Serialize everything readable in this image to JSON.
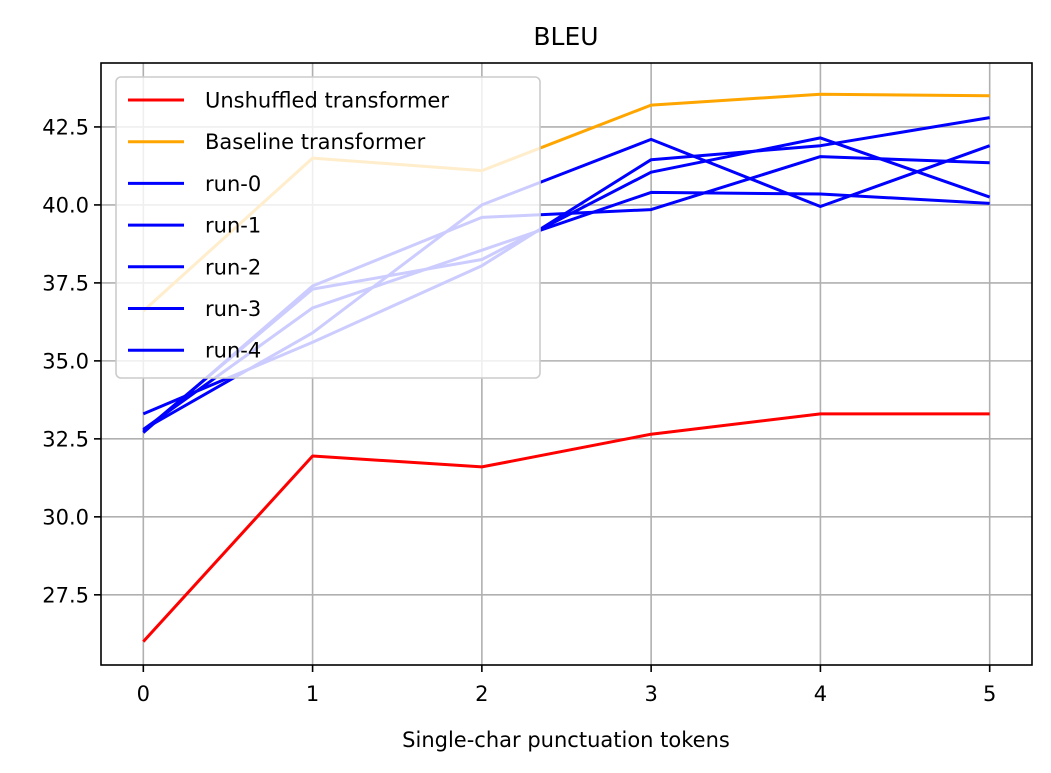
{
  "chart_data": {
    "type": "line",
    "title": "BLEU",
    "xlabel": "Single-char punctuation tokens",
    "ylabel": "",
    "x": [
      0,
      1,
      2,
      3,
      4,
      5
    ],
    "xlim": [
      -0.25,
      5.25
    ],
    "ylim": [
      25.25,
      44.55
    ],
    "xticks": [
      0,
      1,
      2,
      3,
      4,
      5
    ],
    "yticks": [
      27.5,
      30.0,
      32.5,
      35.0,
      37.5,
      40.0,
      42.5
    ],
    "ytick_labels": [
      "27.5",
      "30.0",
      "32.5",
      "35.0",
      "37.5",
      "40.0",
      "42.5"
    ],
    "xtick_labels": [
      "0",
      "1",
      "2",
      "3",
      "4",
      "5"
    ],
    "grid": true,
    "legend_position": "upper-left",
    "series": [
      {
        "name": "Unshuffled transformer",
        "color": "#ff0000",
        "values": [
          26.0,
          31.95,
          31.6,
          32.65,
          33.3,
          33.3
        ]
      },
      {
        "name": "Baseline transformer",
        "color": "#ffa500",
        "values": [
          36.6,
          41.5,
          41.1,
          43.2,
          43.55,
          43.5
        ]
      },
      {
        "name": "run-0",
        "color": "#0000ff",
        "values": [
          32.75,
          37.3,
          38.25,
          41.05,
          42.15,
          40.25
        ]
      },
      {
        "name": "run-1",
        "color": "#0000ff",
        "values": [
          32.8,
          35.9,
          40.0,
          42.1,
          39.95,
          41.9
        ]
      },
      {
        "name": "run-2",
        "color": "#0000ff",
        "values": [
          32.7,
          37.4,
          39.6,
          39.85,
          41.55,
          41.35
        ]
      },
      {
        "name": "run-3",
        "color": "#0000ff",
        "values": [
          32.8,
          36.7,
          38.55,
          40.4,
          40.35,
          40.05
        ]
      },
      {
        "name": "run-4",
        "color": "#0000ff",
        "values": [
          33.3,
          35.6,
          38.05,
          41.45,
          41.9,
          42.8
        ]
      }
    ]
  }
}
